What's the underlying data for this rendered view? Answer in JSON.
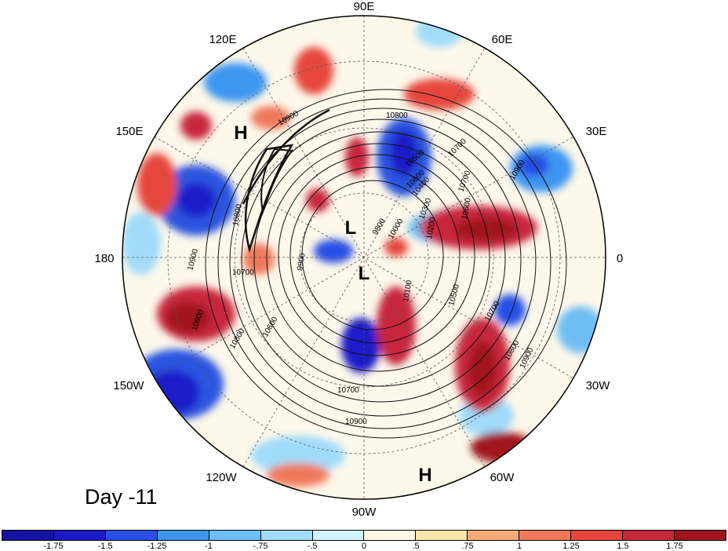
{
  "figure": {
    "panel_label": "Day -11",
    "longitude_labels": [
      "90E",
      "60E",
      "30E",
      "0",
      "30W",
      "60W",
      "90W",
      "120W",
      "150W",
      "180",
      "150E",
      "120E"
    ],
    "pressure_systems": [
      {
        "label": "H",
        "region": "east-siberia"
      },
      {
        "label": "L",
        "region": "arctic"
      },
      {
        "label": "L",
        "region": "canadian-arctic"
      },
      {
        "label": "H",
        "region": "tropical-atlantic"
      }
    ],
    "contour_labels": [
      "10900",
      "10800",
      "10700",
      "10600",
      "10500",
      "10400",
      "10300",
      "10200",
      "10100",
      "10000",
      "9900",
      "9800",
      "10800",
      "10900",
      "10700",
      "10600",
      "10500",
      "10700",
      "10800",
      "10900",
      "10800",
      "10700",
      "10600",
      "10700",
      "10900",
      "10900",
      "10800"
    ]
  },
  "colorbar": {
    "colors": [
      "#1a1ac8",
      "#2850e6",
      "#3c96f0",
      "#6ebef5",
      "#a0dcfa",
      "#d2f2ff",
      "#fffae6",
      "#fae6aa",
      "#f5aa78",
      "#f0785a",
      "#e6463c",
      "#c8283c",
      "#a0141e"
    ],
    "tick_labels": [
      "-1.75",
      "-1.5",
      "-1.25",
      "-1",
      "-.75",
      "-.5",
      "0",
      ".5",
      ".75",
      "1",
      "1.25",
      "1.5",
      "1.75"
    ]
  }
}
